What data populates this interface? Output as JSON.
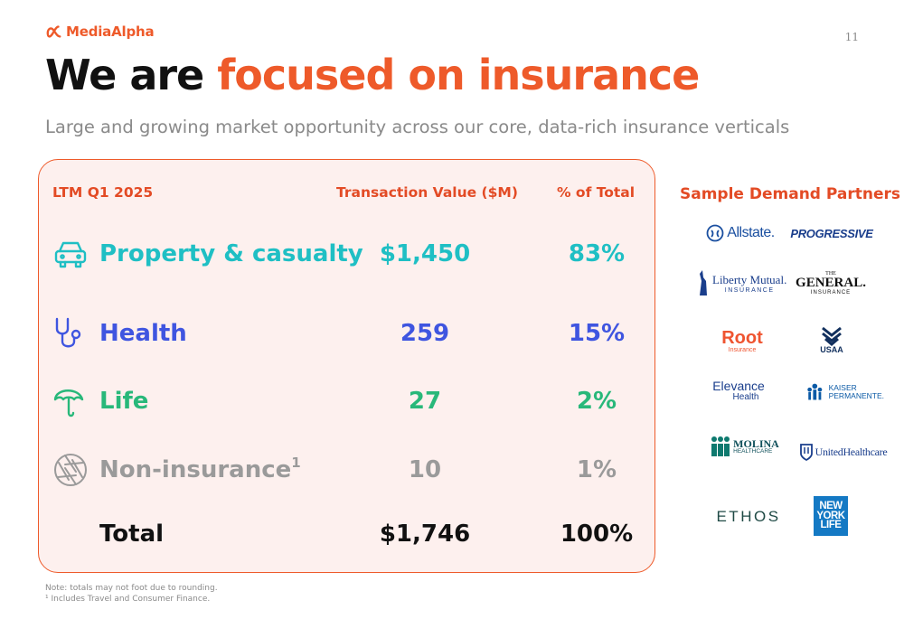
{
  "header": {
    "logo_text": "MediaAlpha",
    "page_number": "11",
    "title_part1": "We are ",
    "title_part2": "focused on insurance",
    "subtitle": "Large and growing market opportunity across our core, data-rich insurance verticals"
  },
  "table": {
    "period_label": "LTM Q1 2025",
    "col_value": "Transaction Value ($M)",
    "col_pct": "% of Total",
    "rows": [
      {
        "label": "Property & casualty",
        "value": "$1,450",
        "pct": "83%",
        "icon": "car-icon",
        "color": "#1fbfc4"
      },
      {
        "label": "Health",
        "value": "259",
        "pct": "15%",
        "icon": "stethoscope-icon",
        "color": "#3f55e0"
      },
      {
        "label": "Life",
        "value": "27",
        "pct": "2%",
        "icon": "umbrella-icon",
        "color": "#28b87a"
      },
      {
        "label": "Non-insurance",
        "footnote_mark": "1",
        "value": "10",
        "pct": "1%",
        "icon": "aperture-icon",
        "color": "#9a9a9a"
      }
    ],
    "total": {
      "label": "Total",
      "value": "$1,746",
      "pct": "100%"
    }
  },
  "partners": {
    "title": "Sample Demand Partners",
    "logos": {
      "allstate": "Allstate.",
      "progressive": "PROGRESSIVE",
      "liberty": "Liberty Mutual.",
      "liberty_sub": "INSURANCE",
      "general_the": "THE",
      "general": "GENERAL.",
      "general_sub": "INSURANCE",
      "root": "Root",
      "root_sub": "Insurance",
      "usaa": "USAA",
      "elevance": "Elevance",
      "elevance_sub": "Health",
      "kaiser1": "KAISER",
      "kaiser2": "PERMANENTE.",
      "molina": "MOLINA",
      "molina_sub": "HEALTHCARE",
      "uhc": "UnitedHealthcare",
      "ethos": "ETHOS",
      "nyl1": "NEW",
      "nyl2": "YORK",
      "nyl3": "LIFE"
    }
  },
  "notes": {
    "note1": "Note: totals may not foot due to rounding.",
    "note2": "¹ Includes Travel and Consumer Finance."
  },
  "colors": {
    "accent": "#ee5a2a",
    "panel_bg": "#fdf0ee",
    "teal": "#1fbfc4",
    "blue": "#3f55e0",
    "green": "#28b87a",
    "gray": "#9a9a9a"
  }
}
